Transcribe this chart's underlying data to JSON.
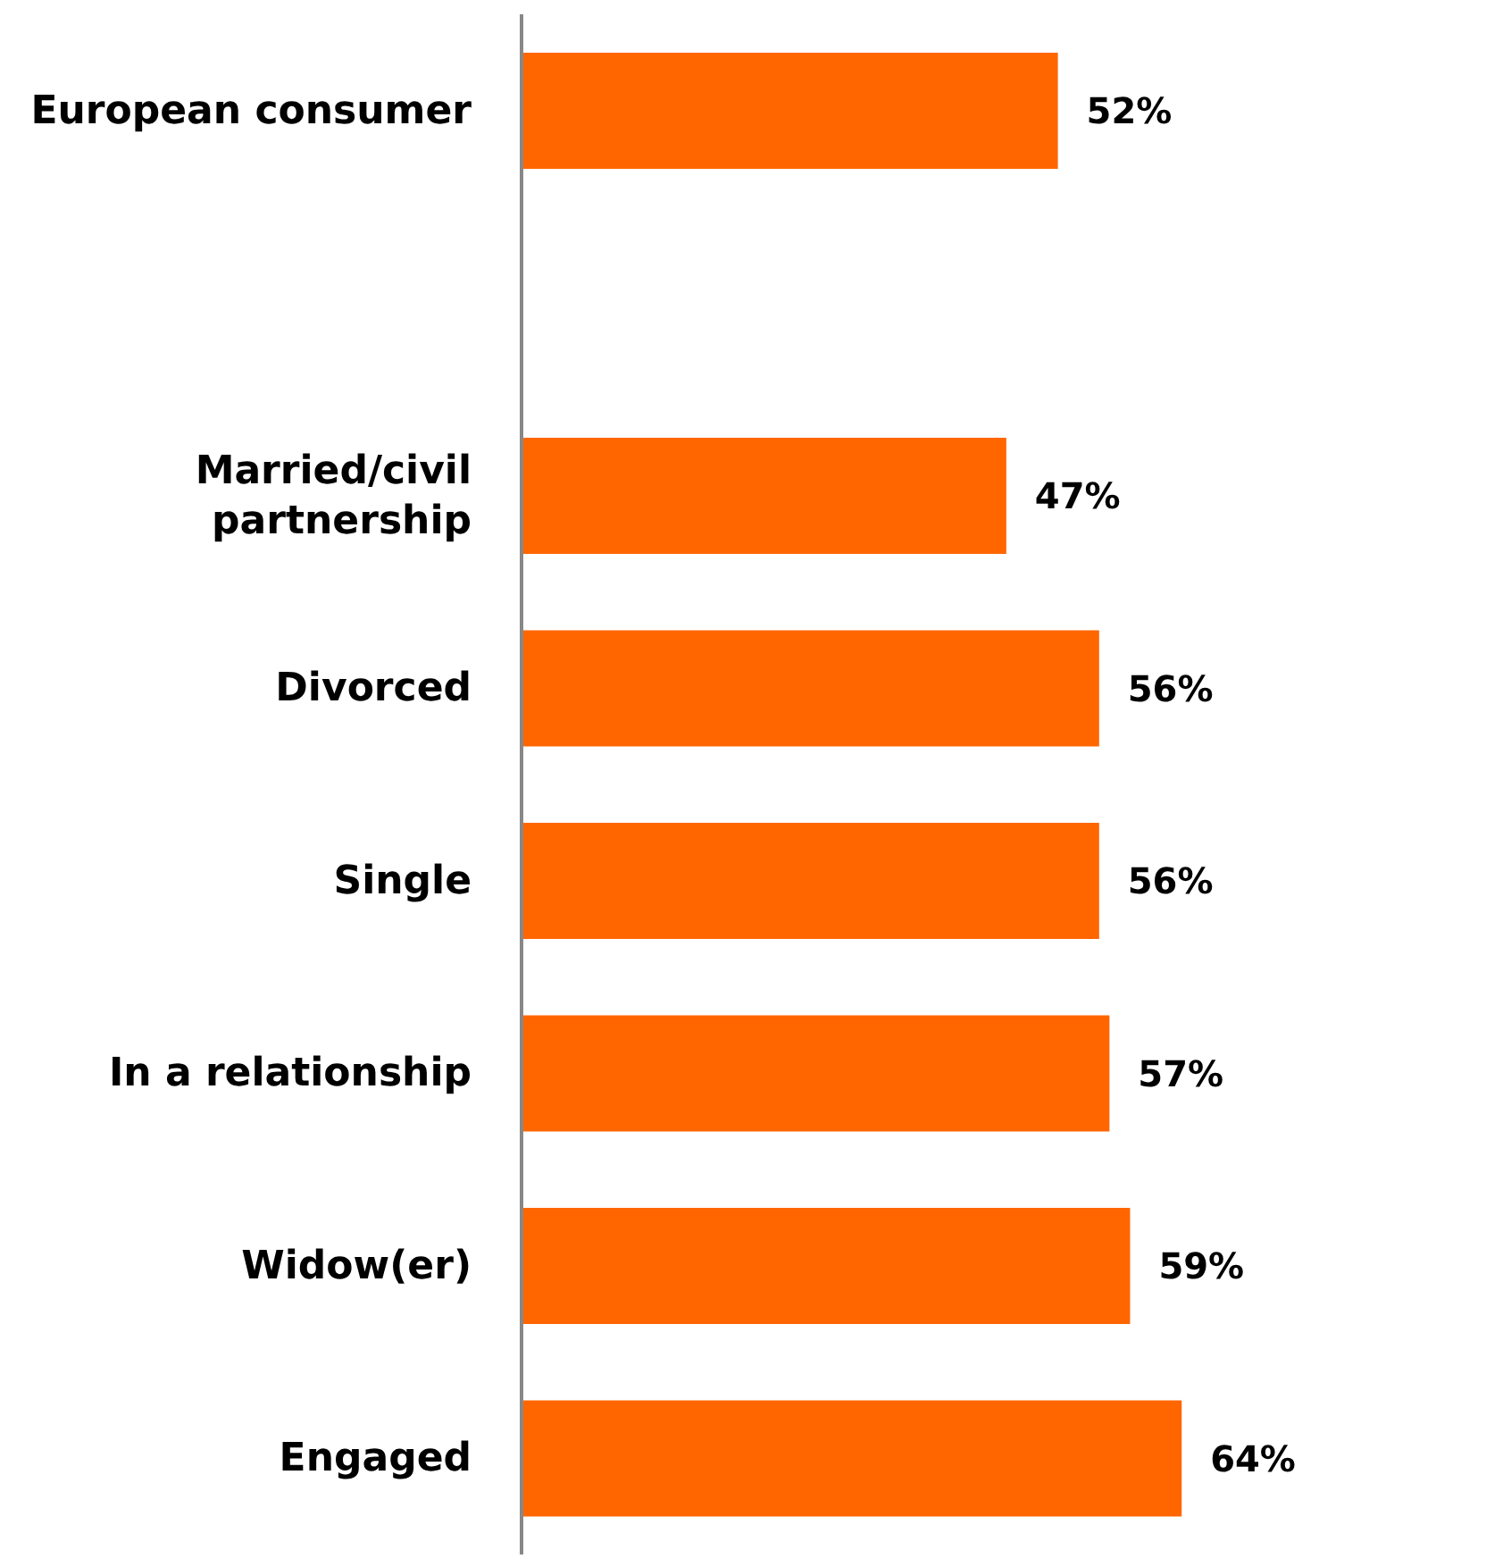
{
  "chart_data": {
    "type": "bar",
    "orientation": "horizontal",
    "categories": [
      "European consumer",
      null,
      "Married/civil partnership",
      "Divorced",
      "Single",
      "In a relationship",
      "Widow(er)",
      "Engaged"
    ],
    "values": [
      52,
      null,
      47,
      56,
      56,
      57,
      59,
      64
    ],
    "value_labels": [
      "52%",
      null,
      "47%",
      "56%",
      "56%",
      "57%",
      "59%",
      "64%"
    ],
    "color": "#ff6600",
    "tick_labels": "y"
  }
}
